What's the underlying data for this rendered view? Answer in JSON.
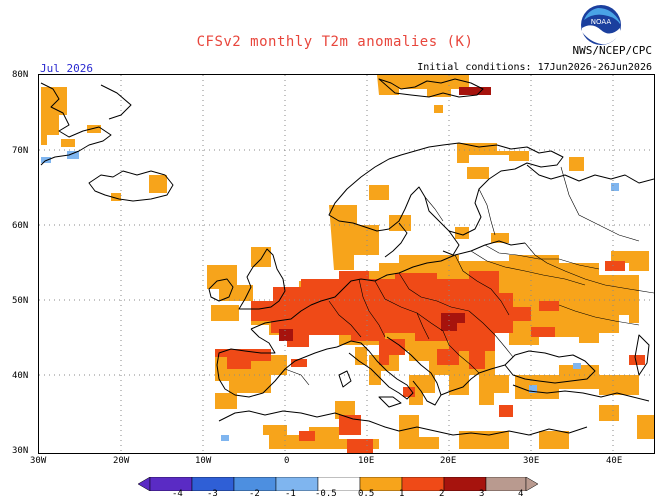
{
  "title": "CFSv2 monthly T2m anomalies (K)",
  "month": "Jul 2026",
  "initial_conditions": "Initial conditions: 17Jun2026-26Jun2026",
  "agency": "NWS/NCEP/CPC",
  "logo_text": "NOAA",
  "lat_labels": [
    "80N",
    "70N",
    "60N",
    "50N",
    "40N",
    "30N"
  ],
  "lon_labels": [
    "30W",
    "20W",
    "10W",
    "0",
    "10E",
    "20E",
    "30E",
    "40E"
  ],
  "colorbar": {
    "labels": [
      "-4",
      "-3",
      "-2",
      "-1",
      "-0.5",
      "0.5",
      "1",
      "2",
      "3",
      "4"
    ],
    "colors": [
      "#5a2bc4",
      "#2f5fd6",
      "#4d8fe0",
      "#7fb5ef",
      "#ffffff",
      "#f7a41b",
      "#ef5a1e",
      "#a01810",
      "#b99a8f"
    ]
  },
  "colors": {
    "anomaly_05_1": "#f7a41b",
    "anomaly_1_2": "#ef4a17",
    "anomaly_2_3": "#a6130d",
    "anomaly_neg": "#7fb5ef",
    "coast": "#000000",
    "grid": "#9a9a9a"
  }
}
